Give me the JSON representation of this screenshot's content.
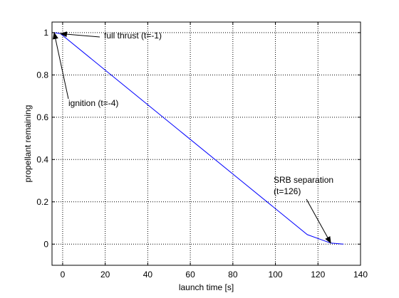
{
  "chart_data": {
    "type": "line",
    "xlabel": "launch time [s]",
    "ylabel": "propellant remaining",
    "xlim": [
      -5,
      140
    ],
    "ylim": [
      -0.1,
      1.05
    ],
    "x_ticks": [
      0,
      20,
      40,
      60,
      80,
      100,
      120,
      140
    ],
    "y_ticks": [
      0,
      0.2,
      0.4,
      0.6,
      0.8,
      1
    ],
    "x_tick_labels": [
      "0",
      "20",
      "40",
      "60",
      "80",
      "100",
      "120",
      "140"
    ],
    "y_tick_labels": [
      "0",
      "0.2",
      "0.4",
      "0.6",
      "0.8",
      "1"
    ],
    "grid": true,
    "line_color": "#0000ff",
    "series": [
      {
        "x": [
          -4,
          -1,
          115,
          126,
          132
        ],
        "y": [
          1.0,
          0.995,
          0.045,
          0.005,
          0.0
        ]
      }
    ],
    "annotations": [
      {
        "lines": [
          "full thrust (t=-1)"
        ],
        "point": [
          -1,
          0.995
        ]
      },
      {
        "lines": [
          "ignition (t=-4)"
        ],
        "point": [
          -4,
          1.0
        ]
      },
      {
        "lines": [
          "SRB separation",
          "(t=126)"
        ],
        "point": [
          126,
          0.005
        ]
      }
    ]
  }
}
